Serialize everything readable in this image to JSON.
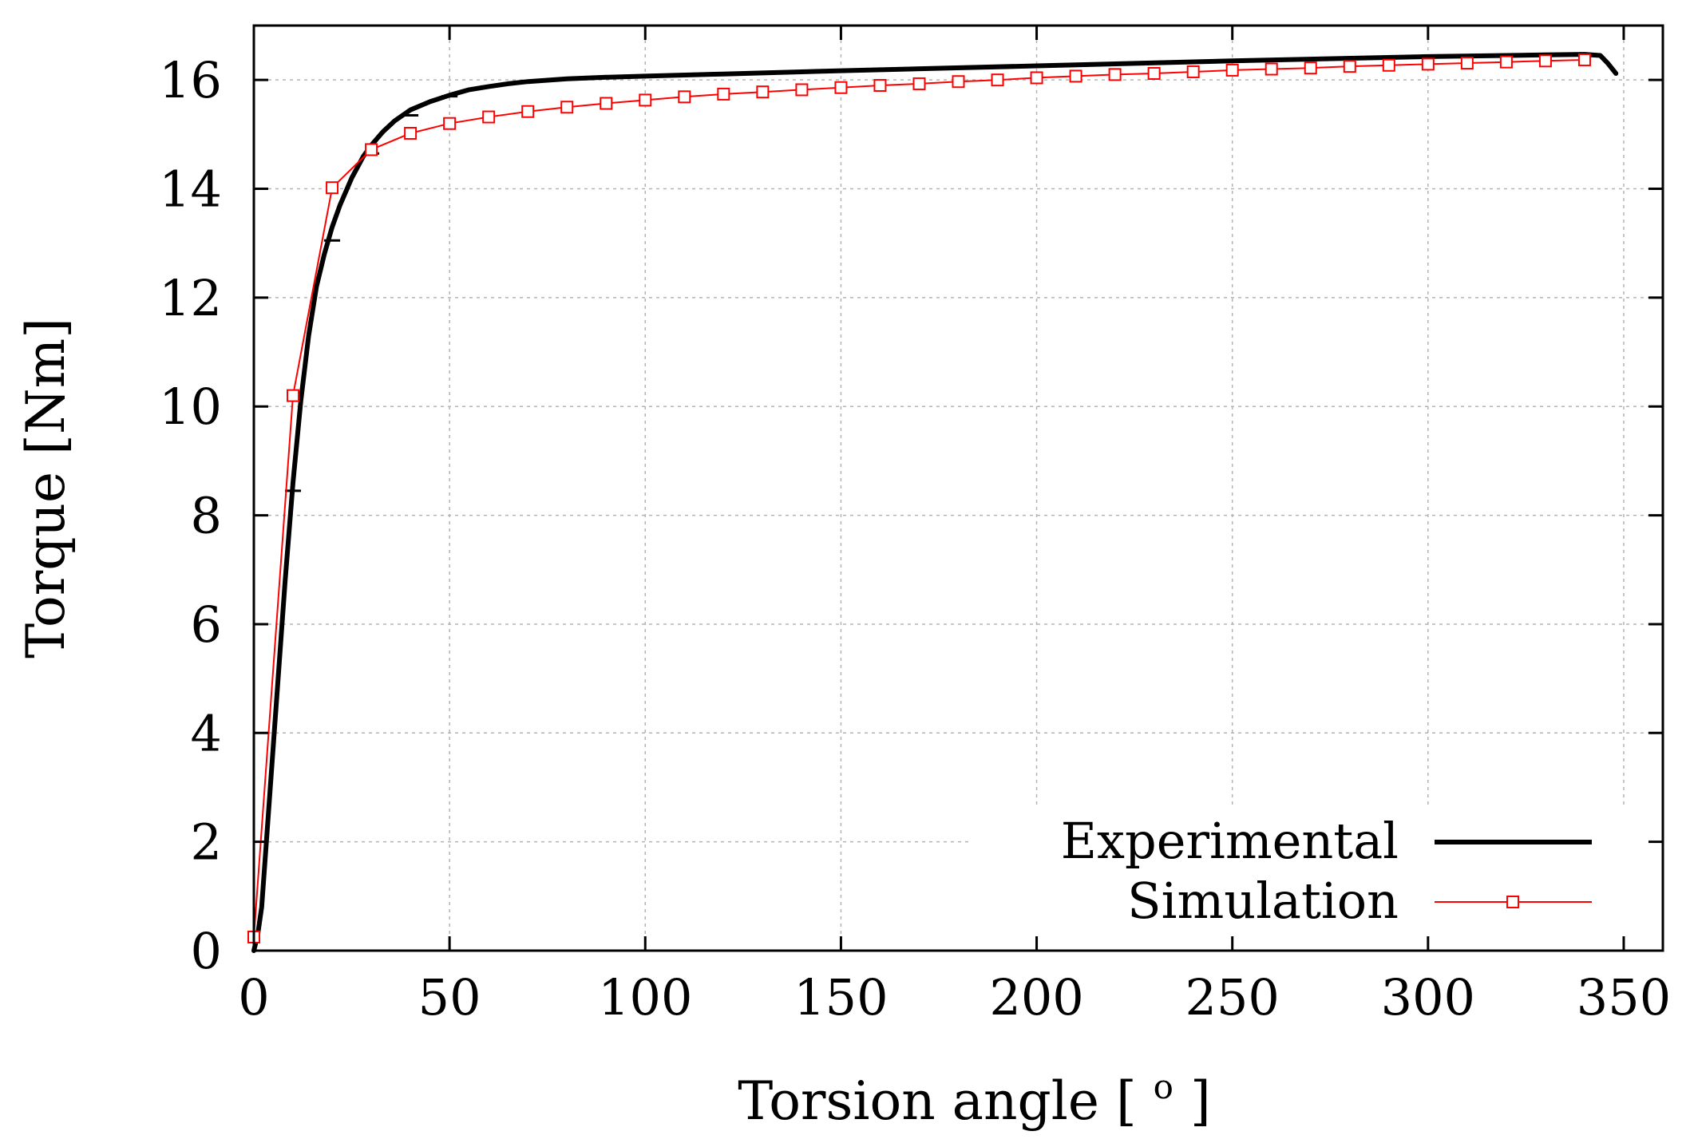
{
  "chart_data": {
    "type": "line",
    "title": "",
    "xlabel": "Torsion angle",
    "xlabel_unit_open": "[",
    "xlabel_unit_sup": "o",
    "xlabel_unit_close": "]",
    "ylabel": "Torque [Nm]",
    "xlim": [
      0,
      360
    ],
    "ylim": [
      0,
      17
    ],
    "xticks": [
      0,
      50,
      100,
      150,
      200,
      250,
      300,
      350
    ],
    "yticks": [
      0,
      2,
      4,
      6,
      8,
      10,
      12,
      14,
      16
    ],
    "grid": true,
    "legend_position": "bottom-right",
    "series": [
      {
        "name": "Experimental",
        "color": "#000000",
        "style": "line",
        "x": [
          0,
          1,
          2,
          3,
          4,
          6,
          8,
          10,
          12,
          14,
          16,
          18,
          20,
          22,
          25,
          28,
          30,
          33,
          36,
          40,
          45,
          50,
          55,
          60,
          65,
          70,
          80,
          90,
          100,
          120,
          150,
          200,
          250,
          300,
          330,
          340,
          344,
          346,
          348
        ],
        "y": [
          0,
          0.3,
          0.8,
          1.8,
          2.8,
          4.8,
          6.8,
          8.6,
          10.1,
          11.3,
          12.2,
          12.8,
          13.3,
          13.7,
          14.2,
          14.6,
          14.8,
          15.05,
          15.25,
          15.45,
          15.6,
          15.72,
          15.82,
          15.88,
          15.93,
          15.97,
          16.02,
          16.05,
          16.07,
          16.11,
          16.17,
          16.26,
          16.35,
          16.43,
          16.46,
          16.47,
          16.45,
          16.3,
          16.12
        ],
        "errorbars": [
          {
            "x": 10,
            "y": 8.45
          },
          {
            "x": 20,
            "y": 13.05
          },
          {
            "x": 30,
            "y": 14.65
          },
          {
            "x": 40,
            "y": 15.35
          },
          {
            "x": 50,
            "y": 15.7
          },
          {
            "x": 60,
            "y": 15.88
          },
          {
            "x": 70,
            "y": 15.97
          },
          {
            "x": 80,
            "y": 16.02
          },
          {
            "x": 90,
            "y": 16.05
          }
        ]
      },
      {
        "name": "Simulation",
        "color": "#ff0000",
        "style": "line-square",
        "x": [
          0,
          10,
          20,
          30,
          40,
          50,
          60,
          70,
          80,
          90,
          100,
          110,
          120,
          130,
          140,
          150,
          160,
          170,
          180,
          190,
          200,
          210,
          220,
          230,
          240,
          250,
          260,
          270,
          280,
          290,
          300,
          310,
          320,
          330,
          340
        ],
        "y": [
          0.25,
          10.2,
          14.02,
          14.72,
          15.02,
          15.2,
          15.32,
          15.42,
          15.5,
          15.57,
          15.63,
          15.69,
          15.74,
          15.78,
          15.82,
          15.86,
          15.9,
          15.93,
          15.97,
          16.0,
          16.04,
          16.07,
          16.1,
          16.12,
          16.15,
          16.18,
          16.2,
          16.22,
          16.25,
          16.27,
          16.29,
          16.31,
          16.33,
          16.35,
          16.37
        ]
      }
    ]
  }
}
